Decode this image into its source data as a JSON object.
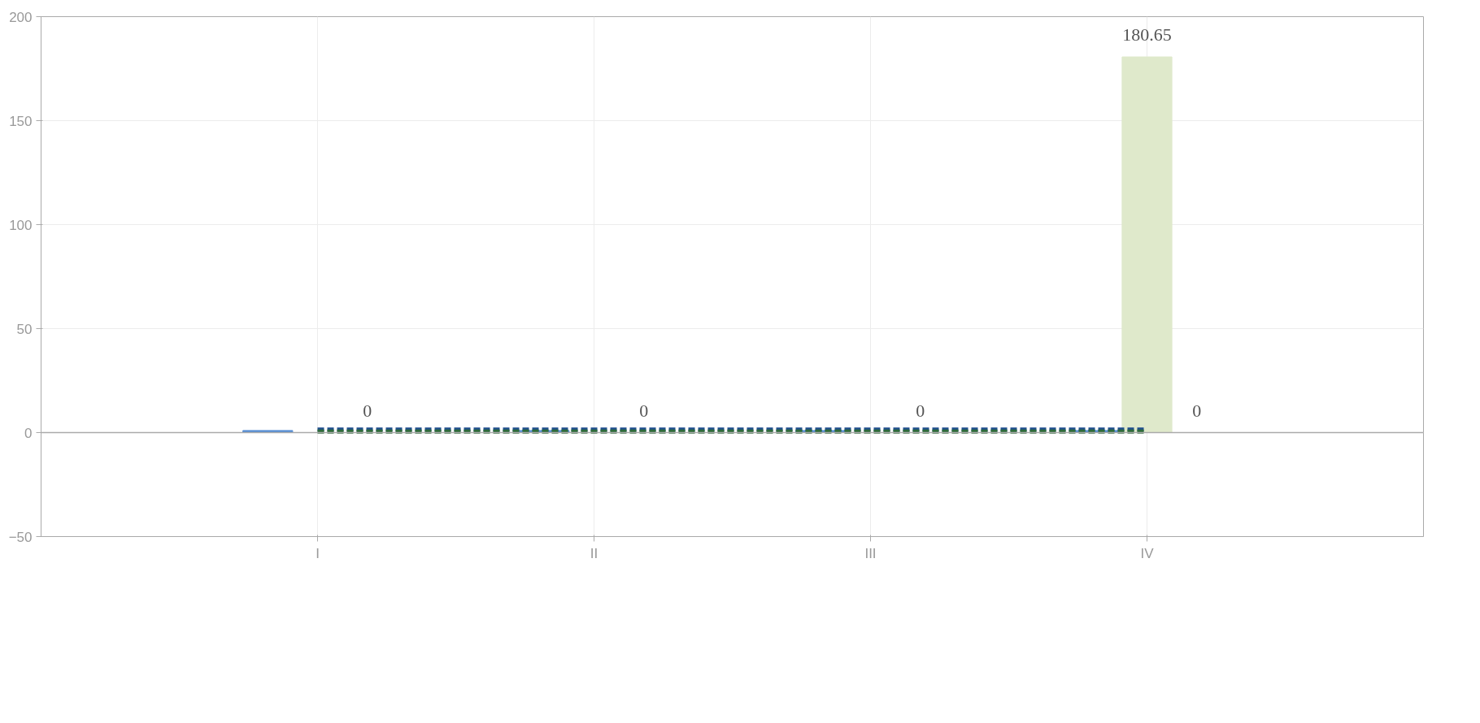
{
  "chart_data": {
    "type": "bar",
    "categories": [
      "I",
      "II",
      "III",
      "IV"
    ],
    "series": [
      {
        "color": "#222222",
        "values": [
          0,
          0,
          0,
          0
        ]
      },
      {
        "color": "#548dd4",
        "values": [
          1,
          1,
          1,
          1
        ]
      },
      {
        "color": "#dfe9cb",
        "values": [
          0,
          0,
          0,
          180.65
        ],
        "value_labels": [
          null,
          null,
          null,
          "180.65"
        ]
      },
      {
        "color": "#9bbb59",
        "values": [
          0,
          0,
          0,
          0
        ],
        "value_labels": [
          "0",
          "0",
          "0",
          "0"
        ]
      },
      {
        "type": "line",
        "color": "#1f4e8c",
        "line_style": "dashed",
        "values": [
          1.5,
          1.5,
          1.5,
          1.5
        ]
      },
      {
        "type": "line",
        "color": "#2e6b3a",
        "line_style": "dashed",
        "values": [
          0.5,
          0.5,
          0.5,
          0.5
        ]
      }
    ],
    "ylim": [
      -50,
      200
    ],
    "yticks": [
      -50,
      0,
      50,
      100,
      150,
      200
    ],
    "grid": true,
    "marker": "none"
  }
}
